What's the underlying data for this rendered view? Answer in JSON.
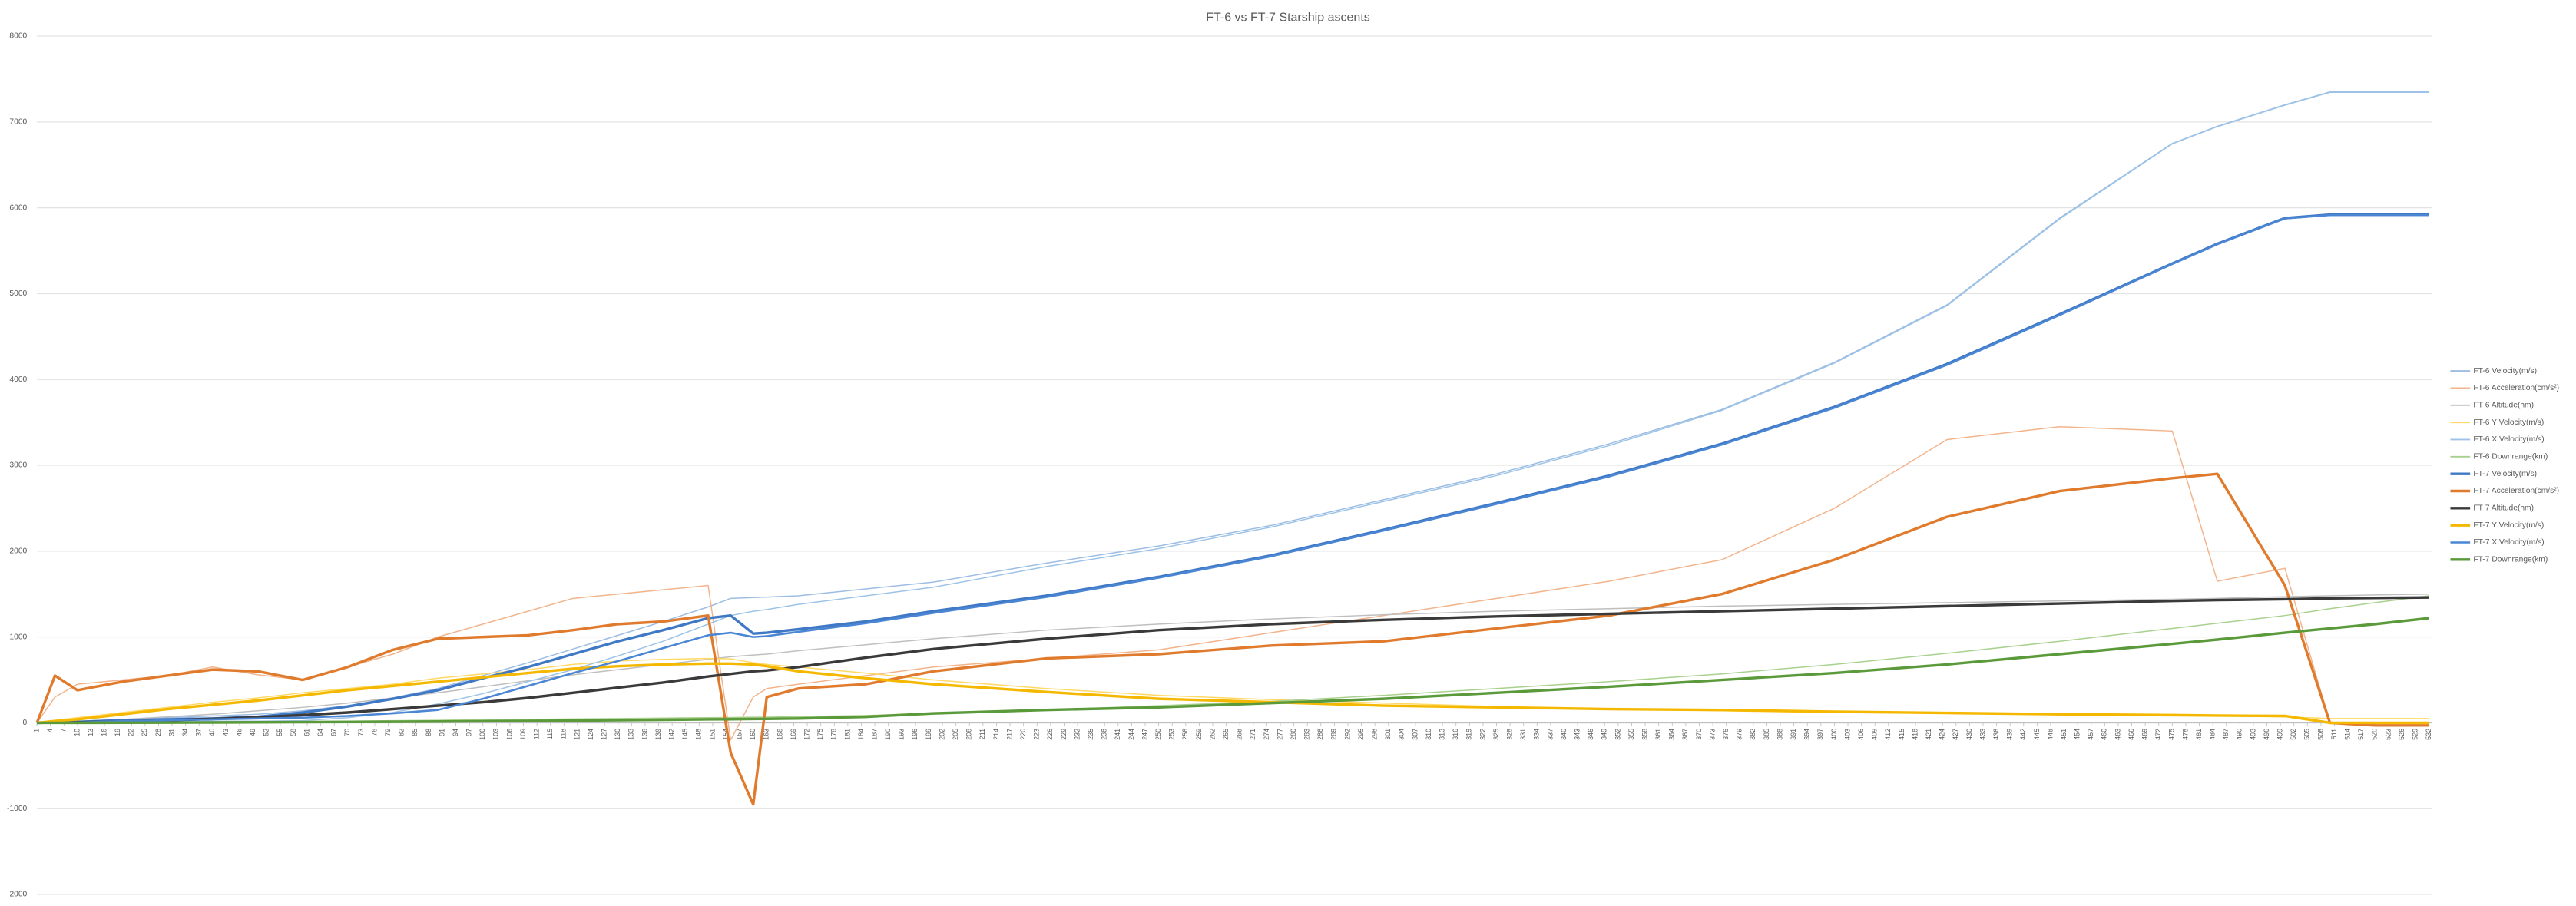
{
  "chart_data": {
    "type": "line",
    "title": "FT-6 vs FT-7 Starship ascents",
    "x": [
      1,
      5,
      10,
      20,
      30,
      40,
      50,
      60,
      70,
      80,
      90,
      100,
      110,
      120,
      130,
      140,
      150,
      155,
      160,
      163,
      170,
      185,
      200,
      225,
      250,
      275,
      300,
      325,
      350,
      375,
      400,
      425,
      450,
      475,
      485,
      500,
      510,
      520,
      532
    ],
    "xlim": [
      1,
      532
    ],
    "xticks": [
      1,
      4,
      7,
      10,
      13,
      16,
      19,
      22,
      25,
      28,
      31,
      34,
      37,
      40,
      43,
      46,
      49,
      52,
      55,
      58,
      61,
      64,
      67,
      70,
      73,
      76,
      79,
      82,
      85,
      88,
      91,
      94,
      97,
      100,
      103,
      106,
      109,
      112,
      115,
      118,
      121,
      124,
      127,
      130,
      133,
      136,
      139,
      142,
      145,
      148,
      151,
      154,
      157,
      160,
      163,
      166,
      169,
      172,
      175,
      178,
      181,
      184,
      187,
      190,
      193,
      196,
      199,
      202,
      205,
      208,
      211,
      214,
      217,
      220,
      223,
      226,
      229,
      232,
      235,
      238,
      241,
      244,
      247,
      250,
      253,
      256,
      259,
      262,
      265,
      268,
      271,
      274,
      277,
      280,
      283,
      286,
      289,
      292,
      295,
      298,
      301,
      304,
      307,
      310,
      313,
      316,
      319,
      322,
      325,
      328,
      331,
      334,
      337,
      340,
      343,
      346,
      349,
      352,
      355,
      358,
      361,
      364,
      367,
      370,
      373,
      376,
      379,
      382,
      385,
      388,
      391,
      394,
      397,
      400,
      403,
      406,
      409,
      412,
      415,
      418,
      421,
      424,
      427,
      430,
      433,
      436,
      439,
      442,
      445,
      448,
      451,
      454,
      457,
      460,
      463,
      466,
      469,
      472,
      475,
      478,
      481,
      484,
      487,
      490,
      493,
      496,
      499,
      502,
      505,
      508,
      511,
      514,
      517,
      520,
      523,
      526,
      529,
      532
    ],
    "ylim": [
      -2000,
      8000
    ],
    "yticks": [
      -2000,
      -1000,
      0,
      1000,
      2000,
      3000,
      4000,
      5000,
      6000,
      7000,
      8000
    ],
    "grid": true,
    "legend": "right",
    "series": [
      {
        "name": "FT-6 Velocity(m/s)",
        "color": "#9dbde3",
        "width": 0.7,
        "values": [
          0,
          10,
          20,
          40,
          60,
          80,
          100,
          140,
          200,
          290,
          400,
          550,
          700,
          860,
          1020,
          1180,
          1350,
          1450,
          1460,
          1465,
          1480,
          1560,
          1640,
          1860,
          2060,
          2300,
          2600,
          2900,
          3250,
          3650,
          4200,
          4870,
          5880,
          6750,
          6950,
          7200,
          7350,
          7350,
          7350
        ]
      },
      {
        "name": "FT-6 Acceleration(cm/s²)",
        "color": "#f2b48c",
        "width": 0.7,
        "values": [
          0,
          300,
          450,
          500,
          550,
          650,
          560,
          500,
          650,
          800,
          1000,
          1150,
          1300,
          1450,
          1500,
          1550,
          1600,
          -200,
          300,
          400,
          450,
          550,
          650,
          750,
          850,
          1050,
          1250,
          1450,
          1650,
          1900,
          2500,
          3300,
          3450,
          3400,
          1650,
          1800,
          0,
          0,
          0
        ]
      },
      {
        "name": "FT-6 Altitude(hm)",
        "color": "#bfbfbf",
        "width": 0.7,
        "values": [
          0,
          5,
          15,
          40,
          70,
          100,
          140,
          180,
          230,
          290,
          350,
          420,
          490,
          560,
          620,
          680,
          740,
          770,
          790,
          800,
          840,
          910,
          980,
          1080,
          1150,
          1210,
          1260,
          1300,
          1330,
          1360,
          1380,
          1400,
          1420,
          1440,
          1450,
          1470,
          1480,
          1490,
          1500
        ]
      },
      {
        "name": "FT-6 Y Velocity(m/s)",
        "color": "#ffd966",
        "width": 0.7,
        "values": [
          0,
          30,
          60,
          120,
          180,
          240,
          290,
          350,
          400,
          450,
          520,
          570,
          620,
          680,
          720,
          740,
          750,
          745,
          700,
          680,
          650,
          580,
          500,
          400,
          320,
          270,
          230,
          190,
          160,
          140,
          120,
          110,
          100,
          90,
          80,
          70,
          50,
          50,
          50
        ]
      },
      {
        "name": "FT-6 X Velocity(m/s)",
        "color": "#9dc3e6",
        "width": 0.7,
        "values": [
          0,
          0,
          5,
          10,
          15,
          20,
          20,
          25,
          60,
          120,
          220,
          340,
          480,
          620,
          780,
          950,
          1150,
          1250,
          1300,
          1320,
          1380,
          1480,
          1580,
          1820,
          2030,
          2280,
          2580,
          2880,
          3230,
          3640,
          4190,
          4860,
          5870,
          6745,
          6945,
          7195,
          7345,
          7345,
          7345
        ]
      },
      {
        "name": "FT-6 Downrange(km)",
        "color": "#a9d18e",
        "width": 0.7,
        "values": [
          0,
          0,
          0,
          2,
          5,
          8,
          12,
          16,
          20,
          25,
          30,
          35,
          40,
          45,
          50,
          55,
          60,
          62,
          65,
          67,
          72,
          85,
          110,
          150,
          200,
          250,
          320,
          400,
          480,
          570,
          680,
          810,
          950,
          1100,
          1160,
          1250,
          1330,
          1400,
          1480
        ]
      },
      {
        "name": "FT-7 Velocity(m/s)",
        "color": "#3f78c4",
        "width": 1.6,
        "values": [
          0,
          5,
          10,
          30,
          40,
          50,
          70,
          120,
          190,
          280,
          380,
          520,
          650,
          800,
          950,
          1080,
          1220,
          1250,
          1040,
          1050,
          1090,
          1180,
          1300,
          1480,
          1700,
          1950,
          2250,
          2560,
          2880,
          3250,
          3680,
          4180,
          4760,
          5350,
          5580,
          5880,
          5920,
          5920,
          5920
        ]
      },
      {
        "name": "FT-7 Acceleration(cm/s²)",
        "color": "#e07b2e",
        "width": 1.6,
        "values": [
          0,
          550,
          380,
          480,
          550,
          620,
          600,
          500,
          650,
          850,
          980,
          1000,
          1020,
          1080,
          1150,
          1180,
          1250,
          -350,
          -950,
          300,
          400,
          450,
          600,
          750,
          800,
          900,
          950,
          1100,
          1250,
          1500,
          1900,
          2400,
          2700,
          2850,
          2900,
          1600,
          0,
          -30,
          -30
        ]
      },
      {
        "name": "FT-7 Altitude(hm)",
        "color": "#3a3a3a",
        "width": 1.6,
        "values": [
          0,
          2,
          5,
          15,
          30,
          45,
          65,
          90,
          120,
          160,
          200,
          240,
          290,
          350,
          410,
          470,
          540,
          570,
          600,
          610,
          650,
          760,
          860,
          980,
          1080,
          1150,
          1200,
          1240,
          1270,
          1300,
          1330,
          1360,
          1390,
          1420,
          1430,
          1440,
          1450,
          1455,
          1460
        ]
      },
      {
        "name": "FT-7 Y Velocity(m/s)",
        "color": "#f5b800",
        "width": 1.6,
        "values": [
          0,
          20,
          40,
          100,
          160,
          210,
          260,
          320,
          380,
          430,
          480,
          530,
          580,
          630,
          660,
          680,
          690,
          690,
          680,
          660,
          600,
          520,
          450,
          360,
          280,
          240,
          200,
          180,
          160,
          150,
          130,
          115,
          100,
          90,
          85,
          80,
          0,
          0,
          0
        ]
      },
      {
        "name": "FT-7 X Velocity(m/s)",
        "color": "#4a86d4",
        "width": 1.2,
        "values": [
          0,
          0,
          5,
          20,
          30,
          40,
          50,
          60,
          80,
          110,
          150,
          280,
          430,
          580,
          720,
          870,
          1020,
          1050,
          1000,
          1010,
          1060,
          1160,
          1280,
          1465,
          1690,
          1940,
          2240,
          2550,
          2870,
          3240,
          3670,
          4170,
          4750,
          5345,
          5575,
          5875,
          5915,
          5915,
          5915
        ]
      },
      {
        "name": "FT-7 Downrange(km)",
        "color": "#5a9a3a",
        "width": 1.6,
        "values": [
          0,
          0,
          0,
          1,
          2,
          4,
          6,
          8,
          10,
          12,
          15,
          18,
          22,
          26,
          30,
          35,
          40,
          42,
          45,
          46,
          50,
          70,
          110,
          150,
          180,
          230,
          280,
          350,
          420,
          500,
          580,
          680,
          800,
          920,
          970,
          1050,
          1100,
          1150,
          1220
        ]
      }
    ]
  }
}
